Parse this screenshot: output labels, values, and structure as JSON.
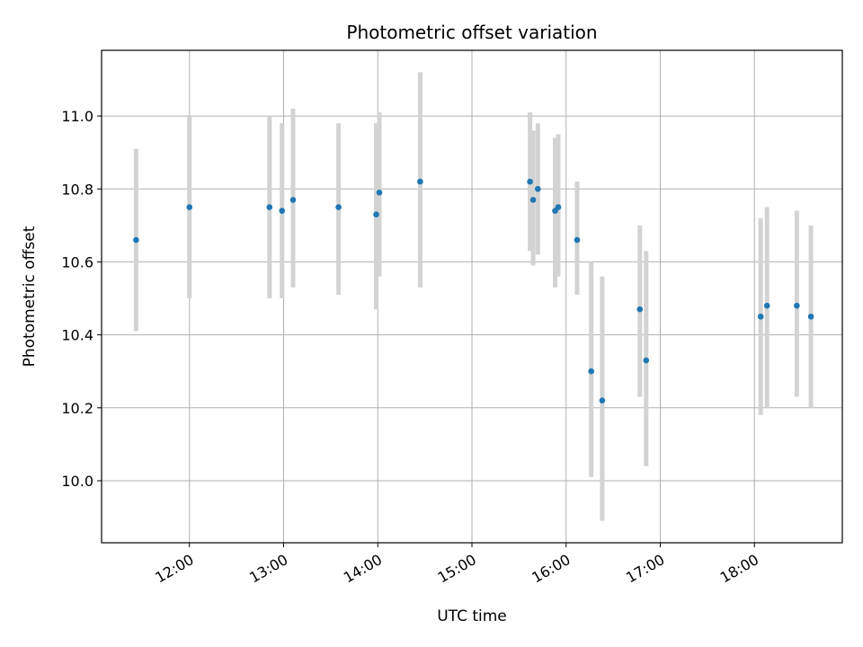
{
  "chart_data": {
    "type": "scatter",
    "title": "Photometric offset variation",
    "xlabel": "UTC time",
    "ylabel": "Photometric offset",
    "x_unit": "UTC time (HH:MM)",
    "xlim": [
      "11:04",
      "18:56"
    ],
    "ylim": [
      9.83,
      11.18
    ],
    "x_ticks": [
      "12:00",
      "13:00",
      "14:00",
      "15:00",
      "16:00",
      "17:00",
      "18:00"
    ],
    "y_ticks": [
      10.0,
      10.2,
      10.4,
      10.6,
      10.8,
      11.0
    ],
    "grid": true,
    "point_color": "#1f77b4",
    "errorbar_color": "#d3d3d3",
    "series": [
      {
        "points": [
          {
            "t": "11:26",
            "y": 10.66,
            "lo": 10.41,
            "hi": 10.91
          },
          {
            "t": "12:00",
            "y": 10.75,
            "lo": 10.5,
            "hi": 11.0
          },
          {
            "t": "12:51",
            "y": 10.75,
            "lo": 10.5,
            "hi": 11.0
          },
          {
            "t": "12:59",
            "y": 10.74,
            "lo": 10.5,
            "hi": 10.98
          },
          {
            "t": "13:06",
            "y": 10.77,
            "lo": 10.53,
            "hi": 11.02
          },
          {
            "t": "13:35",
            "y": 10.75,
            "lo": 10.51,
            "hi": 10.98
          },
          {
            "t": "13:59",
            "y": 10.73,
            "lo": 10.47,
            "hi": 10.98
          },
          {
            "t": "14:01",
            "y": 10.79,
            "lo": 10.56,
            "hi": 11.01
          },
          {
            "t": "14:27",
            "y": 10.82,
            "lo": 10.53,
            "hi": 11.12
          },
          {
            "t": "15:37",
            "y": 10.82,
            "lo": 10.63,
            "hi": 11.01
          },
          {
            "t": "15:39",
            "y": 10.77,
            "lo": 10.59,
            "hi": 10.96
          },
          {
            "t": "15:42",
            "y": 10.8,
            "lo": 10.62,
            "hi": 10.98
          },
          {
            "t": "15:53",
            "y": 10.74,
            "lo": 10.53,
            "hi": 10.94
          },
          {
            "t": "15:55",
            "y": 10.75,
            "lo": 10.56,
            "hi": 10.95
          },
          {
            "t": "16:07",
            "y": 10.66,
            "lo": 10.51,
            "hi": 10.82
          },
          {
            "t": "16:16",
            "y": 10.3,
            "lo": 10.01,
            "hi": 10.6
          },
          {
            "t": "16:23",
            "y": 10.22,
            "lo": 9.89,
            "hi": 10.56
          },
          {
            "t": "16:47",
            "y": 10.47,
            "lo": 10.23,
            "hi": 10.7
          },
          {
            "t": "16:51",
            "y": 10.33,
            "lo": 10.04,
            "hi": 10.63
          },
          {
            "t": "18:04",
            "y": 10.45,
            "lo": 10.18,
            "hi": 10.72
          },
          {
            "t": "18:08",
            "y": 10.48,
            "lo": 10.2,
            "hi": 10.75
          },
          {
            "t": "18:27",
            "y": 10.48,
            "lo": 10.23,
            "hi": 10.74
          },
          {
            "t": "18:36",
            "y": 10.45,
            "lo": 10.2,
            "hi": 10.7
          }
        ]
      }
    ]
  }
}
